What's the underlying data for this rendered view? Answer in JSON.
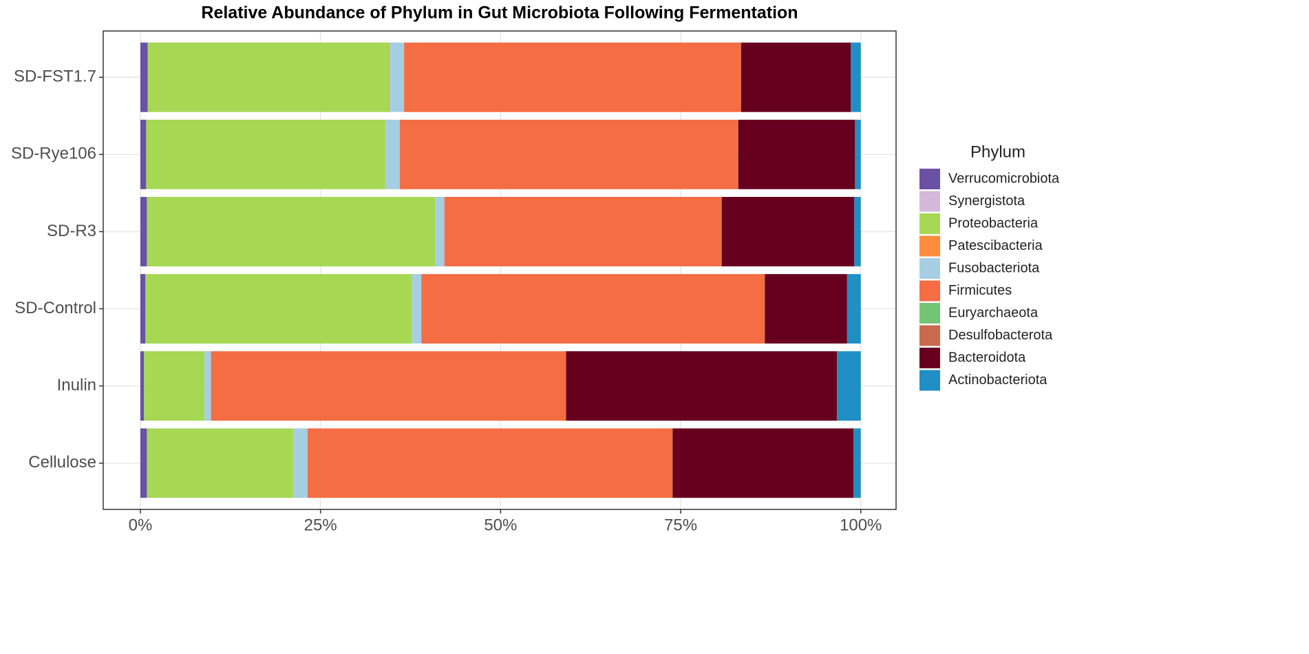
{
  "chart_data": {
    "type": "stacked-bar-horizontal",
    "title": "Relative Abundance of Phylum in Gut Microbiota Following Fermentation",
    "categories": [
      "SD-FST1.7",
      "SD-Rye106",
      "SD-R3",
      "SD-Control",
      "Inulin",
      "Cellulose"
    ],
    "legend_title": "Phylum",
    "series": [
      {
        "name": "Verrucomicrobiota",
        "color": "#6a51a3",
        "values": [
          1.0,
          0.8,
          0.9,
          0.7,
          0.5,
          0.9
        ]
      },
      {
        "name": "Synergistota",
        "color": "#d4b9da",
        "values": [
          0,
          0,
          0,
          0,
          0,
          0
        ]
      },
      {
        "name": "Proteobacteria",
        "color": "#a6d854",
        "values": [
          33.5,
          33.2,
          40.0,
          37.0,
          8.4,
          20.3
        ]
      },
      {
        "name": "Patescibacteria",
        "color": "#fd8d3c",
        "values": [
          0.1,
          0,
          0,
          0,
          0,
          0
        ]
      },
      {
        "name": "Fusobacteriota",
        "color": "#a6cee3",
        "values": [
          2.0,
          2.0,
          1.3,
          1.3,
          0.9,
          2.0
        ]
      },
      {
        "name": "Firmicutes",
        "color": "#f46d43",
        "values": [
          46.7,
          46.9,
          38.4,
          47.6,
          49.2,
          50.6
        ]
      },
      {
        "name": "Euryarchaeota",
        "color": "#74c476",
        "values": [
          0,
          0,
          0,
          0,
          0,
          0
        ]
      },
      {
        "name": "Desulfobacterota",
        "color": "#c96a4f",
        "values": [
          0.1,
          0.1,
          0.1,
          0.1,
          0.1,
          0.1
        ]
      },
      {
        "name": "Bacteroidota",
        "color": "#67001f",
        "values": [
          15.2,
          16.2,
          18.4,
          11.4,
          37.6,
          25.1
        ]
      },
      {
        "name": "Actinobacteriota",
        "color": "#1f8fc4",
        "values": [
          1.4,
          0.8,
          0.9,
          1.9,
          3.3,
          1.0
        ]
      }
    ],
    "xlim": [
      -5.16,
      104.9
    ],
    "xticks": [
      {
        "value": 0,
        "label": "0%"
      },
      {
        "value": 25,
        "label": "25%"
      },
      {
        "value": 50,
        "label": "50%"
      },
      {
        "value": 75,
        "label": "75%"
      },
      {
        "value": 100,
        "label": "100%"
      }
    ],
    "grid": true
  }
}
